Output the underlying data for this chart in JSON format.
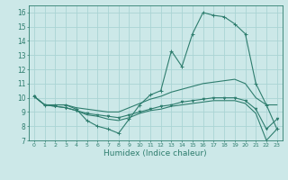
{
  "xlabel": "Humidex (Indice chaleur)",
  "x_values": [
    0,
    1,
    2,
    3,
    4,
    5,
    6,
    7,
    8,
    9,
    10,
    11,
    12,
    13,
    14,
    15,
    16,
    17,
    18,
    19,
    20,
    21,
    22,
    23
  ],
  "line_main": [
    10.1,
    9.5,
    9.5,
    9.5,
    9.2,
    8.4,
    8.0,
    7.8,
    7.5,
    8.5,
    9.5,
    10.2,
    10.5,
    13.3,
    12.2,
    14.5,
    16.0,
    15.8,
    15.7,
    15.2,
    14.5,
    11.0,
    9.5,
    7.8
  ],
  "line_upper": [
    10.1,
    9.5,
    9.5,
    9.5,
    9.3,
    9.2,
    9.1,
    9.0,
    9.0,
    9.3,
    9.6,
    9.9,
    10.1,
    10.4,
    10.6,
    10.8,
    11.0,
    11.1,
    11.2,
    11.3,
    11.0,
    10.0,
    9.5,
    9.5
  ],
  "line_lower1": [
    10.1,
    9.5,
    9.4,
    9.3,
    9.1,
    8.9,
    8.8,
    8.7,
    8.6,
    8.8,
    9.0,
    9.2,
    9.4,
    9.5,
    9.7,
    9.8,
    9.9,
    10.0,
    10.0,
    10.0,
    9.8,
    9.2,
    7.8,
    8.5
  ],
  "line_lower2": [
    10.1,
    9.5,
    9.4,
    9.3,
    9.1,
    8.8,
    8.7,
    8.5,
    8.4,
    8.6,
    8.9,
    9.1,
    9.2,
    9.4,
    9.5,
    9.6,
    9.7,
    9.8,
    9.8,
    9.8,
    9.6,
    8.9,
    7.0,
    7.8
  ],
  "line_color": "#2e7d6e",
  "bg_color": "#cce8e8",
  "grid_color": "#aad4d4",
  "ylim": [
    7,
    16.5
  ],
  "yticks": [
    7,
    8,
    9,
    10,
    11,
    12,
    13,
    14,
    15,
    16
  ]
}
